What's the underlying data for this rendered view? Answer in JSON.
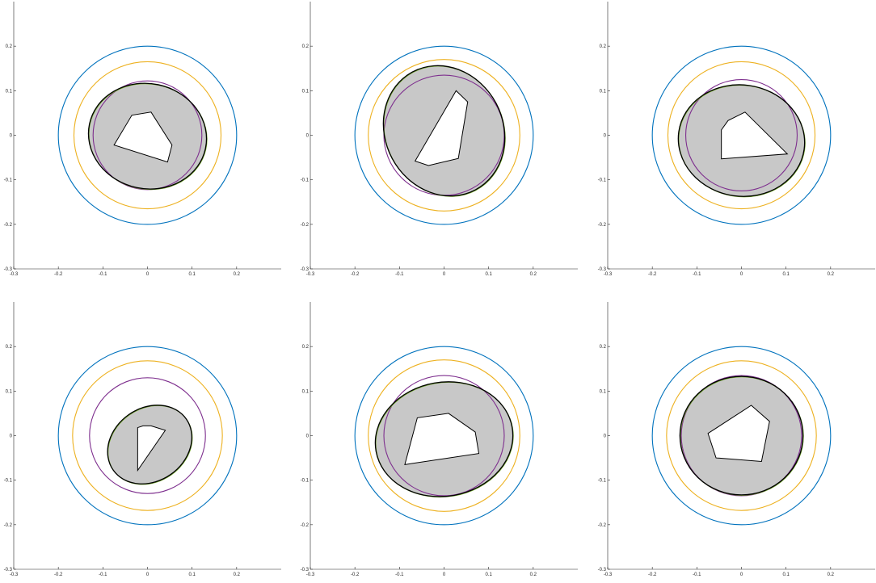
{
  "colors": {
    "outer_circle": "#0072BD",
    "middle_circle": "#EDB120",
    "inner_circle": "#7E2F8E",
    "green_curve": "#77AC30",
    "boundary": "#000000",
    "region_fill": "#C8C8C8",
    "hole_fill": "#FFFFFF"
  },
  "chart_data": [
    {
      "type": "line",
      "panel": "row-1-col-1",
      "xlim": [
        -0.3,
        0.3
      ],
      "ylim": [
        -0.3,
        0.3
      ],
      "xticks": [
        "-0.3",
        "-0.2",
        "-0.1",
        "0",
        "0.1",
        "0.2"
      ],
      "yticks": [
        "-0.3",
        "-0.2",
        "-0.1",
        "0",
        "0.1",
        "0.2"
      ],
      "grid": false,
      "circles": [
        {
          "r": 0.2,
          "color": "outer_circle"
        },
        {
          "r": 0.165,
          "color": "middle_circle"
        },
        {
          "r": 0.122,
          "color": "inner_circle"
        }
      ],
      "region": {
        "cx": 0.0,
        "cy": -0.002,
        "rx": 0.133,
        "ry": 0.118,
        "rot": -12
      },
      "hole": [
        [
          -0.075,
          -0.022
        ],
        [
          -0.035,
          0.045
        ],
        [
          0.008,
          0.052
        ],
        [
          0.055,
          -0.022
        ],
        [
          0.045,
          -0.06
        ]
      ]
    },
    {
      "type": "line",
      "panel": "row-1-col-2",
      "xlim": [
        -0.3,
        0.3
      ],
      "ylim": [
        -0.3,
        0.3
      ],
      "xticks": [
        "-0.3",
        "-0.2",
        "-0.1",
        "0",
        "0.1",
        "0.2"
      ],
      "yticks": [
        "-0.3",
        "-0.2",
        "-0.1",
        "0",
        "0.1",
        "0.2"
      ],
      "grid": false,
      "circles": [
        {
          "r": 0.2,
          "color": "outer_circle"
        },
        {
          "r": 0.17,
          "color": "middle_circle"
        },
        {
          "r": 0.135,
          "color": "inner_circle"
        }
      ],
      "region": {
        "cx": 0.0,
        "cy": 0.01,
        "rx": 0.132,
        "ry": 0.15,
        "rot": 28
      },
      "hole": [
        [
          -0.065,
          -0.058
        ],
        [
          0.027,
          0.1
        ],
        [
          0.053,
          0.075
        ],
        [
          0.032,
          -0.052
        ],
        [
          -0.035,
          -0.068
        ]
      ]
    },
    {
      "type": "line",
      "panel": "row-1-col-3",
      "xlim": [
        -0.3,
        0.3
      ],
      "ylim": [
        -0.3,
        0.3
      ],
      "xticks": [
        "-0.3",
        "-0.2",
        "-0.1",
        "0",
        "0.1",
        "0.2"
      ],
      "yticks": [
        "-0.3",
        "-0.2",
        "-0.1",
        "0",
        "0.1",
        "0.2"
      ],
      "grid": false,
      "circles": [
        {
          "r": 0.2,
          "color": "outer_circle"
        },
        {
          "r": 0.165,
          "color": "middle_circle"
        },
        {
          "r": 0.125,
          "color": "inner_circle"
        }
      ],
      "region": {
        "cx": 0.0,
        "cy": -0.012,
        "rx": 0.142,
        "ry": 0.125,
        "rot": -8
      },
      "hole": [
        [
          -0.045,
          -0.053
        ],
        [
          -0.045,
          0.012
        ],
        [
          -0.03,
          0.033
        ],
        [
          0.008,
          0.052
        ],
        [
          0.103,
          -0.042
        ]
      ]
    },
    {
      "type": "line",
      "panel": "row-2-col-1",
      "xlim": [
        -0.3,
        0.3
      ],
      "ylim": [
        -0.3,
        0.3
      ],
      "xticks": [
        "-0.3",
        "-0.2",
        "-0.1",
        "0",
        "0.1",
        "0.2"
      ],
      "yticks": [
        "-0.3",
        "-0.2",
        "-0.1",
        "0",
        "0.1",
        "0.2"
      ],
      "grid": false,
      "circles": [
        {
          "r": 0.2,
          "color": "outer_circle"
        },
        {
          "r": 0.168,
          "color": "middle_circle"
        },
        {
          "r": 0.13,
          "color": "inner_circle"
        }
      ],
      "region": {
        "cx": 0.005,
        "cy": -0.02,
        "rx": 0.1,
        "ry": 0.082,
        "rot": 35
      },
      "hole": [
        [
          -0.022,
          -0.078
        ],
        [
          -0.022,
          0.018
        ],
        [
          -0.01,
          0.022
        ],
        [
          0.008,
          0.022
        ],
        [
          0.04,
          0.012
        ]
      ]
    },
    {
      "type": "line",
      "panel": "row-2-col-2",
      "xlim": [
        -0.3,
        0.3
      ],
      "ylim": [
        -0.3,
        0.3
      ],
      "xticks": [
        "-0.3",
        "-0.2",
        "-0.1",
        "0",
        "0.1",
        "0.2"
      ],
      "yticks": [
        "-0.3",
        "-0.2",
        "-0.1",
        "0",
        "0.1",
        "0.2"
      ],
      "grid": false,
      "circles": [
        {
          "r": 0.2,
          "color": "outer_circle"
        },
        {
          "r": 0.17,
          "color": "middle_circle"
        },
        {
          "r": 0.135,
          "color": "inner_circle"
        }
      ],
      "region": {
        "cx": 0.0,
        "cy": -0.008,
        "rx": 0.155,
        "ry": 0.128,
        "rot": 10
      },
      "hole": [
        [
          -0.088,
          -0.065
        ],
        [
          -0.06,
          0.04
        ],
        [
          0.01,
          0.05
        ],
        [
          0.07,
          0.008
        ],
        [
          0.078,
          -0.04
        ]
      ]
    },
    {
      "type": "line",
      "panel": "row-2-col-3",
      "xlim": [
        -0.3,
        0.3
      ],
      "ylim": [
        -0.3,
        0.3
      ],
      "xticks": [
        "-0.3",
        "-0.2",
        "-0.1",
        "0",
        "0.1",
        "0.2"
      ],
      "yticks": [
        "-0.3",
        "-0.2",
        "-0.1",
        "0",
        "0.1",
        "0.2"
      ],
      "grid": false,
      "circles": [
        {
          "r": 0.2,
          "color": "outer_circle"
        },
        {
          "r": 0.168,
          "color": "middle_circle"
        },
        {
          "r": 0.135,
          "color": "inner_circle"
        }
      ],
      "region": {
        "cx": 0.0,
        "cy": 0.0,
        "rx": 0.138,
        "ry": 0.133,
        "rot": 0
      },
      "hole": [
        [
          -0.075,
          0.005
        ],
        [
          -0.057,
          -0.05
        ],
        [
          0.045,
          -0.058
        ],
        [
          0.063,
          0.032
        ],
        [
          0.022,
          0.068
        ]
      ]
    }
  ]
}
